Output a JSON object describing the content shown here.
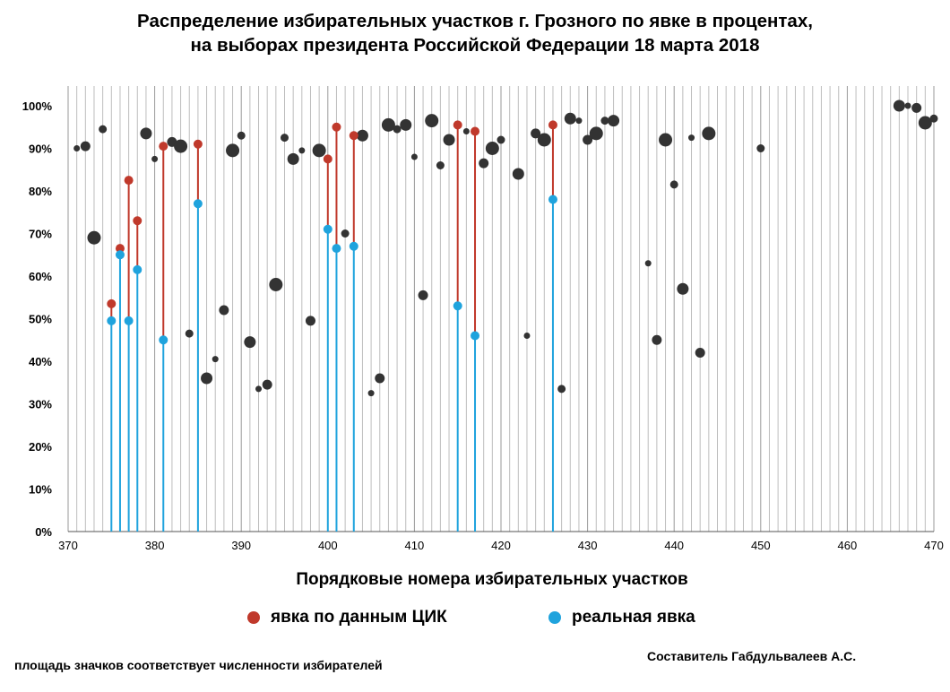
{
  "title": {
    "line1": "Распределение избирательных участков г. Грозного по явке в процентах,",
    "line2": "на выборах президента Российской Федерации 18 марта 2018"
  },
  "colors": {
    "cik": "#c0392b",
    "real": "#1fa3dd",
    "other": "#333333",
    "grid": "#bdbdbd"
  },
  "chart_data": {
    "type": "scatter",
    "title": "Распределение избирательных участков г. Грозного по явке в процентах, на выборах президента Российской Федерации 18 марта 2018",
    "xlabel": "Порядковые номера избирательных участков",
    "ylabel": "",
    "xlim": [
      370,
      470
    ],
    "ylim": [
      0,
      100
    ],
    "x_ticks": [
      "370",
      "380",
      "390",
      "400",
      "410",
      "420",
      "430",
      "440",
      "450",
      "460",
      "470"
    ],
    "y_ticks": [
      "0%",
      "10%",
      "20%",
      "30%",
      "40%",
      "50%",
      "60%",
      "70%",
      "80%",
      "90%",
      "100%"
    ],
    "grid": "vertical lines at every integer x",
    "legend_position": "bottom",
    "series": [
      {
        "name": "явка по данным ЦИК",
        "color": "#c0392b",
        "points": [
          [
            375,
            53.5
          ],
          [
            376,
            66.5
          ],
          [
            377,
            82.5
          ],
          [
            378,
            73
          ],
          [
            381,
            90.5
          ],
          [
            385,
            91
          ],
          [
            400,
            87.5
          ],
          [
            401,
            95
          ],
          [
            403,
            93
          ],
          [
            415,
            95.5
          ],
          [
            417,
            94
          ],
          [
            426,
            95.5
          ]
        ]
      },
      {
        "name": "реальная явка",
        "color": "#1fa3dd",
        "points": [
          [
            375,
            49.5
          ],
          [
            376,
            65
          ],
          [
            377,
            49.5
          ],
          [
            378,
            61.5
          ],
          [
            381,
            45
          ],
          [
            385,
            77
          ],
          [
            400,
            71
          ],
          [
            401,
            66.5
          ],
          [
            403,
            67
          ],
          [
            415,
            53
          ],
          [
            417,
            46
          ],
          [
            426,
            78
          ]
        ]
      },
      {
        "name": "",
        "color": "#333333",
        "points": [
          [
            371,
            90
          ],
          [
            372,
            90.5
          ],
          [
            373,
            69
          ],
          [
            374,
            94.5
          ],
          [
            379,
            93.5
          ],
          [
            380,
            87.5
          ],
          [
            382,
            91.5
          ],
          [
            383,
            90.5
          ],
          [
            384,
            46.5
          ],
          [
            386,
            36
          ],
          [
            387,
            40.5
          ],
          [
            388,
            52
          ],
          [
            389,
            89.5
          ],
          [
            390,
            93
          ],
          [
            391,
            44.5
          ],
          [
            392,
            33.5
          ],
          [
            393,
            34.5
          ],
          [
            394,
            58
          ],
          [
            395,
            92.5
          ],
          [
            396,
            87.5
          ],
          [
            397,
            89.5
          ],
          [
            398,
            49.5
          ],
          [
            399,
            89.5
          ],
          [
            402,
            70
          ],
          [
            404,
            93
          ],
          [
            405,
            32.5
          ],
          [
            406,
            36
          ],
          [
            407,
            95.5
          ],
          [
            408,
            94.5
          ],
          [
            409,
            95.5
          ],
          [
            410,
            88
          ],
          [
            411,
            55.5
          ],
          [
            412,
            96.5
          ],
          [
            413,
            86
          ],
          [
            414,
            92
          ],
          [
            416,
            94
          ],
          [
            418,
            86.5
          ],
          [
            419,
            90
          ],
          [
            420,
            92
          ],
          [
            422,
            84
          ],
          [
            423,
            46
          ],
          [
            424,
            93.5
          ],
          [
            425,
            92
          ],
          [
            427,
            33.5
          ],
          [
            428,
            97
          ],
          [
            429,
            96.5
          ],
          [
            430,
            92
          ],
          [
            431,
            93.5
          ],
          [
            432,
            96.5
          ],
          [
            433,
            96.5
          ],
          [
            437,
            63
          ],
          [
            438,
            45
          ],
          [
            439,
            92
          ],
          [
            440,
            81.5
          ],
          [
            441,
            57
          ],
          [
            442,
            92.5
          ],
          [
            443,
            42
          ],
          [
            444,
            93.5
          ],
          [
            450,
            90
          ],
          [
            466,
            100
          ],
          [
            467,
            100
          ],
          [
            468,
            99.5
          ],
          [
            469,
            96
          ],
          [
            470,
            97
          ]
        ]
      }
    ]
  },
  "legend": {
    "cik_label": "явка по данным ЦИК",
    "real_label": "реальная явка"
  },
  "note": "площадь значков соответствует численности избирателей",
  "author": "Составитель Габдульвалеев А.С."
}
